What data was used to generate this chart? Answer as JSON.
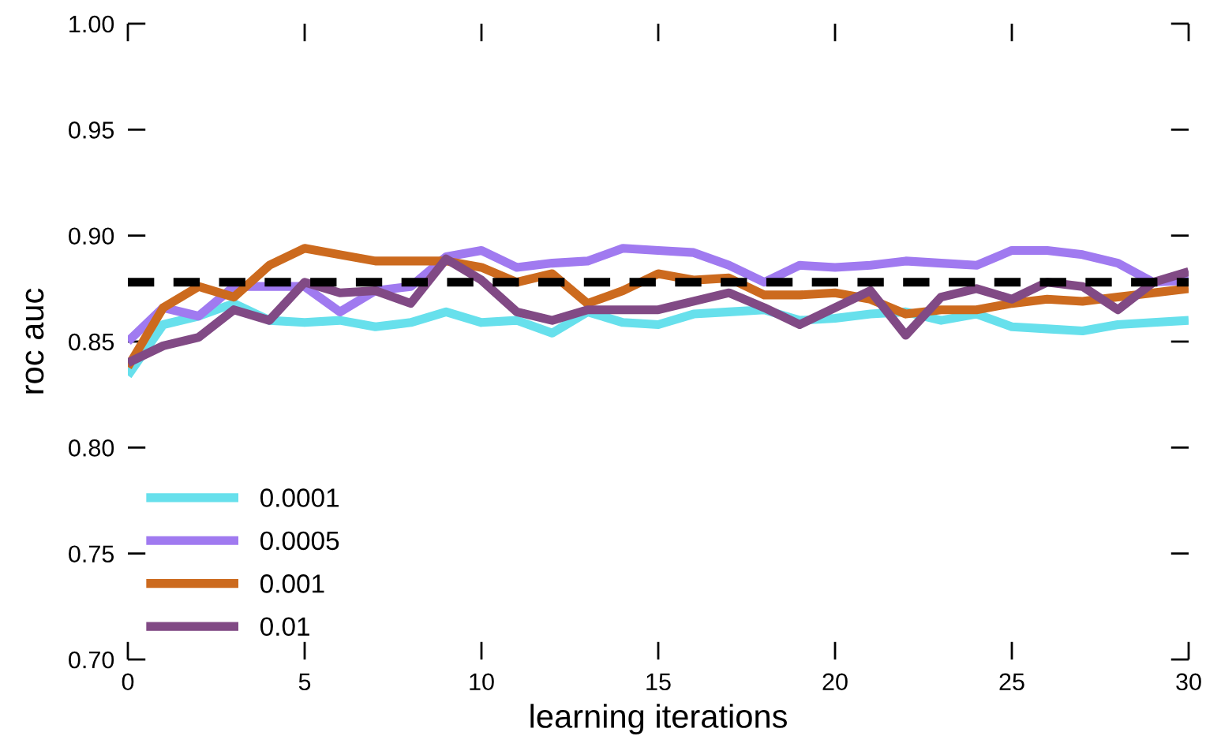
{
  "chart_data": {
    "type": "line",
    "xlabel": "learning iterations",
    "ylabel": "roc auc",
    "x": [
      0,
      1,
      2,
      3,
      4,
      5,
      6,
      7,
      8,
      9,
      10,
      11,
      12,
      13,
      14,
      15,
      16,
      17,
      18,
      19,
      20,
      21,
      22,
      23,
      24,
      25,
      26,
      27,
      28,
      29,
      30
    ],
    "xlim": [
      0,
      30
    ],
    "xticks": [
      0,
      5,
      10,
      15,
      20,
      25,
      30
    ],
    "ylim": [
      0.7,
      1.0
    ],
    "yticks": [
      {
        "value": 0.7,
        "label": "0.70"
      },
      {
        "value": 0.75,
        "label": "0.75"
      },
      {
        "value": 0.8,
        "label": "0.80"
      },
      {
        "value": 0.85,
        "label": "0.85"
      },
      {
        "value": 0.9,
        "label": "0.90"
      },
      {
        "value": 0.95,
        "label": "0.95"
      },
      {
        "value": 1.0,
        "label": "1.00"
      }
    ],
    "grid": false,
    "legend": "bottom left",
    "line_style": "solid",
    "marker": "none",
    "ref_lines": [
      {
        "axis": "y",
        "value": 0.878,
        "color": "#000000",
        "line_style": "dashed"
      }
    ],
    "series": [
      {
        "name": "0.0001",
        "color": "#67e0ec",
        "values": [
          0.834,
          0.858,
          0.862,
          0.868,
          0.86,
          0.859,
          0.86,
          0.857,
          0.859,
          0.864,
          0.859,
          0.86,
          0.854,
          0.864,
          0.859,
          0.858,
          0.863,
          0.864,
          0.865,
          0.86,
          0.861,
          0.863,
          0.864,
          0.86,
          0.863,
          0.857,
          0.856,
          0.855,
          0.858,
          0.859,
          0.86
        ]
      },
      {
        "name": "0.0005",
        "color": "#a07af0",
        "values": [
          0.85,
          0.866,
          0.862,
          0.876,
          0.876,
          0.876,
          0.864,
          0.874,
          0.876,
          0.89,
          0.893,
          0.885,
          0.887,
          0.888,
          0.894,
          0.893,
          0.892,
          0.886,
          0.878,
          0.886,
          0.885,
          0.886,
          0.888,
          0.887,
          0.886,
          0.893,
          0.893,
          0.891,
          0.887,
          0.878,
          0.879
        ]
      },
      {
        "name": "0.001",
        "color": "#cc6a1e",
        "values": [
          0.838,
          0.866,
          0.876,
          0.871,
          0.886,
          0.894,
          0.891,
          0.888,
          0.888,
          0.888,
          0.885,
          0.878,
          0.882,
          0.868,
          0.874,
          0.882,
          0.879,
          0.88,
          0.872,
          0.872,
          0.873,
          0.87,
          0.863,
          0.865,
          0.865,
          0.868,
          0.87,
          0.869,
          0.871,
          0.873,
          0.875
        ]
      },
      {
        "name": "0.01",
        "color": "#814a85",
        "values": [
          0.84,
          0.848,
          0.852,
          0.865,
          0.86,
          0.878,
          0.873,
          0.874,
          0.868,
          0.889,
          0.879,
          0.864,
          0.86,
          0.865,
          0.865,
          0.865,
          0.869,
          0.873,
          0.866,
          0.858,
          0.866,
          0.874,
          0.853,
          0.871,
          0.875,
          0.87,
          0.878,
          0.876,
          0.865,
          0.878,
          0.883
        ]
      }
    ]
  }
}
